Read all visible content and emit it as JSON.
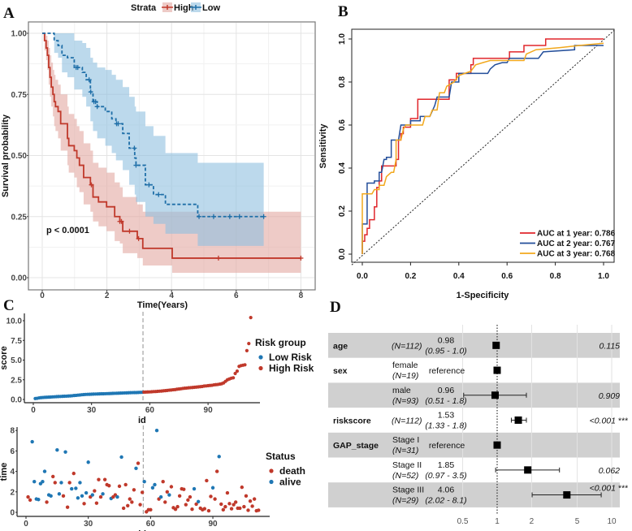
{
  "panel_labels": [
    "A",
    "B",
    "C",
    "D"
  ],
  "chart_data": [
    {
      "type": "line",
      "subtype": "kaplan-meier",
      "legend_title": "Strata",
      "legend_position": "top",
      "xlabel": "Time(Years)",
      "ylabel": "Survival probability",
      "xlim": [
        0,
        8
      ],
      "ylim": [
        0,
        1
      ],
      "x_ticks": [
        "0",
        "2",
        "4",
        "6",
        "8"
      ],
      "y_ticks": [
        "0.00",
        "0.25",
        "0.50",
        "0.75",
        "1.00"
      ],
      "grid": true,
      "annotation": "p < 0.0001",
      "series": [
        {
          "name": "High",
          "color": "#c0392b",
          "band_color": "#e3a9a2",
          "linestyle": "solid",
          "time": [
            0,
            0.07,
            0.12,
            0.16,
            0.2,
            0.24,
            0.28,
            0.33,
            0.37,
            0.41,
            0.49,
            0.57,
            0.78,
            0.82,
            0.99,
            1.07,
            1.15,
            1.28,
            1.49,
            1.57,
            1.74,
            1.99,
            2.24,
            2.4,
            2.49,
            2.94,
            3.11,
            4.02
          ],
          "end_time": 8,
          "survival": [
            1,
            0.97,
            0.94,
            0.91,
            0.86,
            0.82,
            0.78,
            0.75,
            0.72,
            0.7,
            0.68,
            0.63,
            0.57,
            0.54,
            0.52,
            0.49,
            0.46,
            0.41,
            0.38,
            0.33,
            0.31,
            0.29,
            0.25,
            0.23,
            0.19,
            0.16,
            0.12,
            0.08
          ],
          "ci_upper": [
            1,
            1,
            0.99,
            0.97,
            0.94,
            0.91,
            0.88,
            0.85,
            0.83,
            0.81,
            0.79,
            0.75,
            0.7,
            0.67,
            0.65,
            0.62,
            0.6,
            0.55,
            0.52,
            0.47,
            0.45,
            0.43,
            0.39,
            0.37,
            0.33,
            0.3,
            0.27,
            0.27
          ],
          "ci_lower": [
            1,
            0.93,
            0.89,
            0.85,
            0.79,
            0.74,
            0.7,
            0.66,
            0.62,
            0.6,
            0.57,
            0.52,
            0.46,
            0.43,
            0.41,
            0.37,
            0.35,
            0.3,
            0.27,
            0.23,
            0.21,
            0.19,
            0.15,
            0.14,
            0.1,
            0.08,
            0.05,
            0.02
          ],
          "censored": [
            1.52,
            2.4,
            2.45,
            2.7,
            2.98,
            5.45,
            8
          ]
        },
        {
          "name": "Low",
          "color": "#1f6fa8",
          "band_color": "#8fbfdf",
          "linestyle": "dashed",
          "time": [
            0,
            0.37,
            0.49,
            0.61,
            0.78,
            0.99,
            1.24,
            1.36,
            1.49,
            1.57,
            1.7,
            1.95,
            2.15,
            2.28,
            2.49,
            2.69,
            2.86,
            2.9,
            3.19,
            3.44,
            3.81,
            4.81
          ],
          "end_time": 6.85,
          "survival": [
            1,
            0.97,
            0.95,
            0.91,
            0.9,
            0.86,
            0.84,
            0.81,
            0.76,
            0.72,
            0.7,
            0.68,
            0.65,
            0.63,
            0.59,
            0.53,
            0.49,
            0.46,
            0.38,
            0.34,
            0.3,
            0.25
          ],
          "ci_upper": [
            1,
            1,
            1,
            1,
            1,
            0.97,
            0.96,
            0.94,
            0.9,
            0.88,
            0.86,
            0.85,
            0.83,
            0.81,
            0.78,
            0.74,
            0.7,
            0.68,
            0.62,
            0.58,
            0.51,
            0.47
          ],
          "ci_lower": [
            1,
            0.92,
            0.9,
            0.84,
            0.82,
            0.77,
            0.74,
            0.7,
            0.64,
            0.6,
            0.57,
            0.54,
            0.51,
            0.48,
            0.44,
            0.38,
            0.34,
            0.31,
            0.25,
            0.22,
            0.18,
            0.13
          ],
          "censored": [
            1.05,
            1.1,
            1.45,
            1.5,
            1.6,
            1.65,
            1.7,
            2.3,
            2.35,
            2.85,
            2.9,
            3.3,
            3.6,
            4.85,
            5.3,
            5.8,
            6.1,
            6.85
          ]
        }
      ]
    },
    {
      "type": "line",
      "subtype": "roc",
      "xlabel": "1-Specificity",
      "ylabel": "Sensitivity",
      "xlim": [
        0,
        1
      ],
      "ylim": [
        0,
        1
      ],
      "x_ticks": [
        "0.0",
        "0.2",
        "0.4",
        "0.6",
        "0.8",
        "1.0"
      ],
      "y_ticks": [
        "0.0",
        "0.2",
        "0.4",
        "0.6",
        "0.8",
        "1.0"
      ],
      "legend_position": "bottom-right",
      "series": [
        {
          "name": "AUC at 1 year: 0.786",
          "color": "#e0262b",
          "fpr": [
            0,
            0,
            0.01,
            0.01,
            0.02,
            0.02,
            0.03,
            0.03,
            0.05,
            0.05,
            0.06,
            0.06,
            0.07,
            0.07,
            0.08,
            0.08,
            0.14,
            0.14,
            0.15,
            0.15,
            0.16,
            0.16,
            0.17,
            0.17,
            0.2,
            0.2,
            0.23,
            0.23,
            0.36,
            0.36,
            0.39,
            0.39,
            0.45,
            0.45,
            0.46,
            0.46,
            0.61,
            0.61,
            0.67,
            0.67,
            0.76,
            0.76,
            1
          ],
          "tpr": [
            0,
            0.06,
            0.06,
            0.09,
            0.09,
            0.12,
            0.12,
            0.16,
            0.16,
            0.22,
            0.22,
            0.31,
            0.31,
            0.34,
            0.34,
            0.41,
            0.41,
            0.44,
            0.44,
            0.53,
            0.53,
            0.56,
            0.56,
            0.59,
            0.59,
            0.63,
            0.63,
            0.72,
            0.72,
            0.81,
            0.81,
            0.84,
            0.84,
            0.88,
            0.88,
            0.91,
            0.91,
            0.94,
            0.94,
            0.97,
            0.97,
            1,
            1
          ]
        },
        {
          "name": "AUC at 2 year: 0.767",
          "color": "#234e9a",
          "fpr": [
            0,
            0,
            0.02,
            0.02,
            0.05,
            0.05,
            0.07,
            0.07,
            0.08,
            0.09,
            0.1,
            0.1,
            0.12,
            0.12,
            0.15,
            0.16,
            0.2,
            0.2,
            0.24,
            0.24,
            0.28,
            0.3,
            0.31,
            0.36,
            0.37,
            0.4,
            0.4,
            0.52,
            0.53,
            0.55,
            0.58,
            0.6,
            0.61,
            0.73,
            0.75,
            0.88,
            0.88,
            1
          ],
          "tpr": [
            0,
            0.14,
            0.14,
            0.33,
            0.33,
            0.34,
            0.34,
            0.38,
            0.38,
            0.44,
            0.44,
            0.45,
            0.45,
            0.53,
            0.53,
            0.6,
            0.6,
            0.62,
            0.62,
            0.64,
            0.64,
            0.69,
            0.73,
            0.73,
            0.8,
            0.8,
            0.84,
            0.84,
            0.86,
            0.88,
            0.89,
            0.89,
            0.91,
            0.91,
            0.94,
            0.95,
            0.97,
            0.97
          ]
        },
        {
          "name": "AUC at 3 year: 0.768",
          "color": "#f2a81d",
          "fpr": [
            0,
            0,
            0.04,
            0.05,
            0.07,
            0.07,
            0.09,
            0.1,
            0.12,
            0.13,
            0.14,
            0.14,
            0.16,
            0.17,
            0.18,
            0.25,
            0.26,
            0.28,
            0.29,
            0.31,
            0.32,
            0.34,
            0.35,
            0.38,
            0.4,
            0.45,
            0.47,
            0.5,
            0.53,
            0.67,
            0.68,
            0.72,
            0.82,
            0.9,
            1
          ],
          "tpr": [
            0,
            0.28,
            0.28,
            0.3,
            0.3,
            0.32,
            0.32,
            0.36,
            0.38,
            0.38,
            0.44,
            0.53,
            0.53,
            0.58,
            0.6,
            0.6,
            0.64,
            0.64,
            0.67,
            0.67,
            0.75,
            0.75,
            0.78,
            0.8,
            0.83,
            0.85,
            0.88,
            0.89,
            0.9,
            0.9,
            0.93,
            0.95,
            0.96,
            0.97,
            0.98
          ]
        }
      ],
      "reference_line": "diagonal dashed"
    },
    {
      "type": "scatter",
      "xlabel": "id",
      "ylabel": "score",
      "xlim": [
        0,
        112
      ],
      "ylim": [
        0,
        10.5
      ],
      "x_ticks": [
        "0",
        "30",
        "60",
        "90"
      ],
      "y_ticks": [
        "0.0",
        "2.5",
        "5.0",
        "7.5",
        "10.0"
      ],
      "cutoff_id": 56,
      "legend_title": "Risk group",
      "legend_position": "right",
      "groups": [
        {
          "name": "Low Risk",
          "color": "#1f77b4"
        },
        {
          "name": "High Risk",
          "color": "#c0392b"
        }
      ],
      "score": [
        0.12,
        0.15,
        0.2,
        0.23,
        0.25,
        0.27,
        0.28,
        0.3,
        0.31,
        0.33,
        0.34,
        0.36,
        0.37,
        0.38,
        0.4,
        0.41,
        0.42,
        0.44,
        0.45,
        0.47,
        0.5,
        0.52,
        0.55,
        0.57,
        0.6,
        0.62,
        0.64,
        0.65,
        0.66,
        0.67,
        0.68,
        0.69,
        0.7,
        0.71,
        0.72,
        0.72,
        0.73,
        0.74,
        0.75,
        0.76,
        0.77,
        0.78,
        0.79,
        0.8,
        0.81,
        0.82,
        0.83,
        0.84,
        0.85,
        0.86,
        0.87,
        0.88,
        0.88,
        0.89,
        0.9,
        0.91,
        0.93,
        0.94,
        0.95,
        0.96,
        0.98,
        1.0,
        1.01,
        1.03,
        1.05,
        1.07,
        1.1,
        1.12,
        1.15,
        1.18,
        1.2,
        1.23,
        1.25,
        1.3,
        1.33,
        1.36,
        1.4,
        1.43,
        1.45,
        1.48,
        1.5,
        1.52,
        1.55,
        1.57,
        1.6,
        1.62,
        1.65,
        1.7,
        1.72,
        1.75,
        1.78,
        1.8,
        1.85,
        1.88,
        1.9,
        1.95,
        2.0,
        2.1,
        2.3,
        2.5,
        2.6,
        2.7,
        2.75,
        3.3,
        3.6,
        4.2,
        4.3,
        4.35,
        4.4,
        6.2,
        7.1,
        10.4
      ]
    },
    {
      "type": "scatter",
      "xlabel": "id",
      "ylabel": "time",
      "xlim": [
        0,
        112
      ],
      "ylim": [
        0,
        8
      ],
      "x_ticks": [
        "0",
        "30",
        "60",
        "90"
      ],
      "y_ticks": [
        "0",
        "2",
        "4",
        "6",
        "8"
      ],
      "cutoff_id": 56,
      "legend_title": "Status",
      "legend_position": "right",
      "groups": [
        {
          "name": "death",
          "color": "#c0392b"
        },
        {
          "name": "alive",
          "color": "#1f77b4"
        }
      ],
      "time": [
        1.5,
        1.2,
        6.9,
        3.0,
        1.3,
        1.25,
        2.8,
        3.0,
        4.0,
        1.0,
        1.7,
        1.6,
        3.5,
        2.9,
        6.1,
        1.8,
        2.9,
        1.6,
        5.9,
        0.5,
        2.9,
        2.3,
        3.8,
        2.35,
        1.4,
        2.9,
        1.6,
        0.85,
        1.9,
        4.9,
        1.5,
        1.7,
        2.1,
        0.9,
        3.2,
        1.5,
        1.8,
        3.2,
        2.7,
        2.6,
        1.35,
        1.5,
        1.7,
        1.5,
        2.55,
        5.4,
        0.4,
        2.7,
        0.65,
        1.3,
        1.0,
        2.2,
        4.3,
        4.8,
        0.75,
        1.95,
        3.0,
        0.05,
        0.25,
        0.25,
        2.4,
        2.7,
        8.0,
        1.3,
        1.5,
        3.0,
        1.0,
        2.0,
        1.7,
        2.5,
        0.45,
        0.3,
        0.55,
        1.6,
        2.3,
        2.25,
        0.75,
        1.2,
        1.5,
        0.3,
        2.3,
        0.8,
        1.05,
        0.4,
        0.25,
        0.35,
        3.1,
        0.15,
        1.55,
        2.4,
        1.3,
        4.0,
        5.45,
        0.8,
        0.25,
        0.55,
        1.9,
        0.85,
        0.35,
        0.75,
        1.0,
        0.4,
        0.4,
        2.45,
        0.55,
        1.6,
        0.2,
        1.1,
        0.6,
        1.3,
        0.15,
        0.2
      ],
      "status": [
        "death",
        "death",
        "alive",
        "alive",
        "alive",
        "alive",
        "alive",
        "alive",
        "alive",
        "death",
        "alive",
        "alive",
        "death",
        "death",
        "alive",
        "alive",
        "alive",
        "death",
        "alive",
        "death",
        "death",
        "alive",
        "death",
        "alive",
        "alive",
        "alive",
        "alive",
        "death",
        "alive",
        "alive",
        "death",
        "alive",
        "death",
        "death",
        "death",
        "death",
        "alive",
        "death",
        "death",
        "death",
        "alive",
        "death",
        "death",
        "alive",
        "death",
        "alive",
        "death",
        "death",
        "death",
        "death",
        "death",
        "death",
        "alive",
        "death",
        "death",
        "death",
        "alive",
        "death",
        "death",
        "death",
        "alive",
        "alive",
        "alive",
        "death",
        "alive",
        "death",
        "death",
        "death",
        "alive",
        "death",
        "death",
        "death",
        "death",
        "death",
        "death",
        "death",
        "death",
        "death",
        "death",
        "death",
        "alive",
        "death",
        "alive",
        "death",
        "death",
        "death",
        "death",
        "death",
        "death",
        "alive",
        "death",
        "death",
        "alive",
        "death",
        "death",
        "death",
        "death",
        "death",
        "death",
        "death",
        "death",
        "death",
        "death",
        "death",
        "death",
        "death",
        "death",
        "death",
        "death",
        "death",
        "death",
        "death"
      ]
    },
    {
      "type": "forest",
      "x_scale": "log",
      "x_ticks": [
        "0.5",
        "1",
        "2",
        "5",
        "10"
      ],
      "x_tick_values": [
        0.5,
        1,
        2,
        5,
        10
      ],
      "reference_value": 1,
      "rows": [
        {
          "variable": "age",
          "level": "",
          "n": "(N=112)",
          "estimate": "0.98",
          "ci": "(0.95 - 1.0)",
          "p": "0.115",
          "sig": "",
          "hr": 0.98,
          "lo": 0.95,
          "hi": 1.0,
          "shade": true
        },
        {
          "variable": "sex",
          "level": "female",
          "n": "(N=19)",
          "estimate": "reference",
          "ci": "",
          "p": "",
          "sig": "",
          "hr": 1,
          "lo": 1,
          "hi": 1,
          "shade": false
        },
        {
          "variable": "",
          "level": "male",
          "n": "(N=93)",
          "estimate": "0.96",
          "ci": "(0.51 - 1.8)",
          "p": "0.909",
          "sig": "",
          "hr": 0.96,
          "lo": 0.51,
          "hi": 1.8,
          "shade": true
        },
        {
          "variable": "riskscore",
          "level": "",
          "n": "(N=112)",
          "estimate": "1.53",
          "ci": "(1.33 - 1.8)",
          "p": "<0.001",
          "sig": "***",
          "hr": 1.53,
          "lo": 1.33,
          "hi": 1.8,
          "shade": false
        },
        {
          "variable": "GAP_stage",
          "level": "Stage I",
          "n": "(N=31)",
          "estimate": "reference",
          "ci": "",
          "p": "",
          "sig": "",
          "hr": 1,
          "lo": 1,
          "hi": 1,
          "shade": true
        },
        {
          "variable": "",
          "level": "Stage II",
          "n": "(N=52)",
          "estimate": "1.85",
          "ci": "(0.97 - 3.5)",
          "p": "0.062",
          "sig": "",
          "hr": 1.85,
          "lo": 0.97,
          "hi": 3.5,
          "shade": false
        },
        {
          "variable": "",
          "level": "Stage III",
          "n": "(N=29)",
          "estimate": "4.06",
          "ci": "(2.02 - 8.1)",
          "p": "<0.001",
          "sig": "***",
          "hr": 4.06,
          "lo": 2.02,
          "hi": 8.1,
          "shade": true
        }
      ]
    }
  ]
}
